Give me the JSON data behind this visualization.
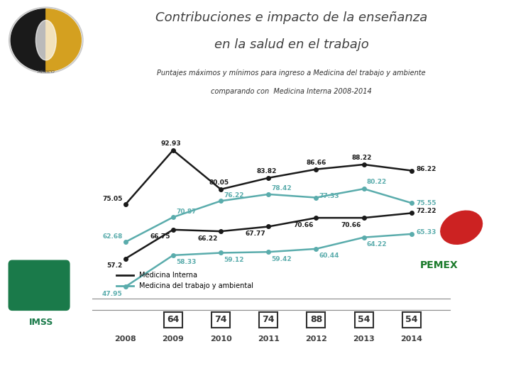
{
  "title_line1": "Contribuciones e impacto de la enseñanza",
  "title_line2": "en la salud en el trabajo",
  "subtitle_line1": "Puntajes máximos y mínimos para ingreso a Medicina del trabajo y ambiente",
  "subtitle_line2": "comparando con  Medicina Interna 2008-2014",
  "years": [
    2008,
    2009,
    2010,
    2011,
    2012,
    2013,
    2014
  ],
  "medicina_interna_max": [
    75.05,
    92.93,
    80.05,
    83.82,
    86.66,
    88.22,
    86.22
  ],
  "medicina_interna_min": [
    57.2,
    66.75,
    66.22,
    67.77,
    70.66,
    70.66,
    72.22
  ],
  "medicina_trabajo_max": [
    62.68,
    70.87,
    76.22,
    78.42,
    77.33,
    80.22,
    75.55
  ],
  "medicina_trabajo_min": [
    47.95,
    58.33,
    59.12,
    59.42,
    60.44,
    64.22,
    65.33
  ],
  "n_values": [
    64,
    74,
    74,
    88,
    54,
    54
  ],
  "n_years": [
    2009,
    2010,
    2011,
    2012,
    2013,
    2014
  ],
  "color_interna": "#1a1a1a",
  "color_trabajo": "#5aacac",
  "background_color": "#ffffff",
  "legend_interna": "Medicina Interna",
  "legend_trabajo": "Medicina del trabajo y ambiental",
  "xlim": [
    2007.3,
    2014.8
  ],
  "ylim": [
    44,
    97
  ],
  "title_color": "#404040",
  "subtitle_color": "#303030",
  "label_color_interna": "#1a1a1a",
  "label_color_trabajo": "#5aacac",
  "year_label_color": "#404040",
  "box_edge_color": "#303030"
}
